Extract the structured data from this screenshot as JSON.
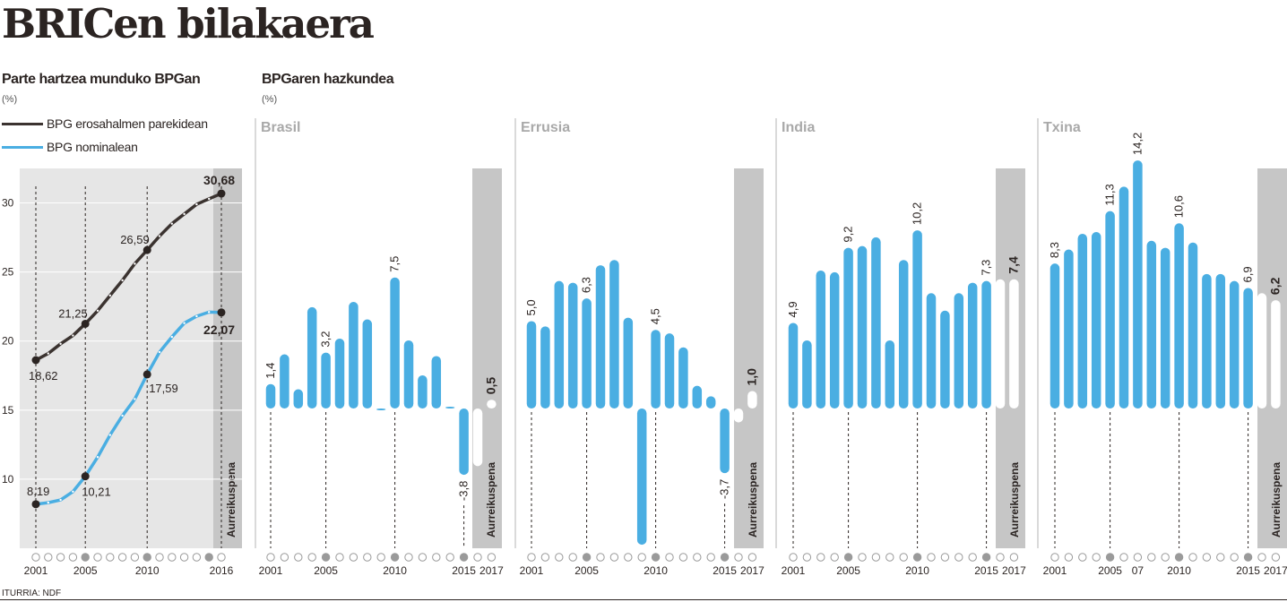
{
  "header": {
    "title": "BRICen bilakaera",
    "left_subtitle": "Parte hartzea munduko BPGan",
    "left_unit": "(%)",
    "right_subtitle": "BPGaren hazkundea",
    "right_unit": "(%)",
    "source": "ITURRIA: NDF"
  },
  "legend": {
    "ppp_label": "BPG erosahalmen parekidean",
    "nominal_label": "BPG nominalean"
  },
  "colors": {
    "dark": "#3b3330",
    "blue": "#4aaee2",
    "panel_bg": "#e6e6e6",
    "forecast_bg": "#c6c6c6",
    "white": "#ffffff"
  },
  "chart_data": [
    {
      "type": "line",
      "id": "share",
      "yticks": [
        10,
        15,
        20,
        25,
        30
      ],
      "ylim": [
        5,
        32.5
      ],
      "xlim": [
        2001,
        2016
      ],
      "x_tick_labels": [
        "2001",
        "2005",
        "2010",
        "2016"
      ],
      "forecast_label": "Aurreikuspena",
      "series": [
        {
          "name": "BPG erosahalmen parekidean",
          "x": [
            2001,
            2002,
            2003,
            2004,
            2005,
            2006,
            2007,
            2008,
            2009,
            2010,
            2011,
            2012,
            2013,
            2014,
            2015,
            2016
          ],
          "values": [
            18.62,
            19.1,
            19.8,
            20.4,
            21.25,
            22.2,
            23.3,
            24.4,
            25.6,
            26.59,
            27.6,
            28.5,
            29.2,
            29.9,
            30.3,
            30.68
          ]
        },
        {
          "name": "BPG nominalean",
          "x": [
            2001,
            2002,
            2003,
            2004,
            2005,
            2006,
            2007,
            2008,
            2009,
            2010,
            2011,
            2012,
            2013,
            2014,
            2015,
            2016
          ],
          "values": [
            8.19,
            8.3,
            8.5,
            9.1,
            10.21,
            11.6,
            13.2,
            14.6,
            15.8,
            17.59,
            19.2,
            20.3,
            21.3,
            21.8,
            22.1,
            22.07
          ]
        }
      ],
      "labels": [
        {
          "x": 2001,
          "series": 0,
          "text": "18,62"
        },
        {
          "x": 2005,
          "series": 0,
          "text": "21,25"
        },
        {
          "x": 2010,
          "series": 0,
          "text": "26,59"
        },
        {
          "x": 2016,
          "series": 0,
          "text": "30,68"
        },
        {
          "x": 2001,
          "series": 1,
          "text": "8,19"
        },
        {
          "x": 2005,
          "series": 1,
          "text": "10,21"
        },
        {
          "x": 2010,
          "series": 1,
          "text": "17,59"
        },
        {
          "x": 2016,
          "series": 1,
          "text": "22,07"
        }
      ]
    },
    {
      "type": "bar",
      "id": "brasil",
      "title": "Brasil",
      "x": [
        2001,
        2002,
        2003,
        2004,
        2005,
        2006,
        2007,
        2008,
        2009,
        2010,
        2011,
        2012,
        2013,
        2014,
        2015,
        2016,
        2017
      ],
      "values": [
        1.4,
        3.1,
        1.1,
        5.8,
        3.2,
        4.0,
        6.1,
        5.1,
        -0.1,
        7.5,
        3.9,
        1.9,
        3.0,
        0.1,
        -3.8,
        -3.3,
        0.5
      ],
      "forecast_from": 2016,
      "labels": [
        {
          "x": 2001,
          "text": "1,4"
        },
        {
          "x": 2005,
          "text": "3,2"
        },
        {
          "x": 2010,
          "text": "7,5"
        },
        {
          "x": 2015,
          "text": "-3,8"
        },
        {
          "x": 2017,
          "text": "0,5"
        }
      ],
      "x_tick_labels": [
        "2001",
        "2005",
        "2010",
        "2015",
        "2017"
      ],
      "forecast_label": "Aurreikuspena"
    },
    {
      "type": "bar",
      "id": "errusia",
      "title": "Errusia",
      "x": [
        2001,
        2002,
        2003,
        2004,
        2005,
        2006,
        2007,
        2008,
        2009,
        2010,
        2011,
        2012,
        2013,
        2014,
        2015,
        2016,
        2017
      ],
      "values": [
        5.0,
        4.7,
        7.3,
        7.2,
        6.3,
        8.2,
        8.5,
        5.2,
        -7.8,
        4.5,
        4.3,
        3.5,
        1.3,
        0.7,
        -3.7,
        -0.8,
        1.0
      ],
      "forecast_from": 2016,
      "labels": [
        {
          "x": 2001,
          "text": "5,0"
        },
        {
          "x": 2005,
          "text": "6,3"
        },
        {
          "x": 2010,
          "text": "4,5"
        },
        {
          "x": 2015,
          "text": "-3,7"
        },
        {
          "x": 2017,
          "text": "1,0"
        }
      ],
      "x_tick_labels": [
        "2001",
        "2005",
        "2010",
        "2015",
        "2017"
      ],
      "forecast_label": "Aurreikuspena"
    },
    {
      "type": "bar",
      "id": "india",
      "title": "India",
      "x": [
        2001,
        2002,
        2003,
        2004,
        2005,
        2006,
        2007,
        2008,
        2009,
        2010,
        2011,
        2012,
        2013,
        2014,
        2015,
        2016,
        2017
      ],
      "values": [
        4.9,
        3.9,
        7.9,
        7.8,
        9.2,
        9.3,
        9.8,
        3.9,
        8.5,
        10.2,
        6.6,
        5.6,
        6.6,
        7.2,
        7.3,
        7.4,
        7.4
      ],
      "forecast_from": 2016,
      "labels": [
        {
          "x": 2001,
          "text": "4,9"
        },
        {
          "x": 2005,
          "text": "9,2"
        },
        {
          "x": 2010,
          "text": "10,2"
        },
        {
          "x": 2015,
          "text": "7,3"
        },
        {
          "x": 2017,
          "text": "7,4"
        }
      ],
      "x_tick_labels": [
        "2001",
        "2005",
        "2010",
        "2015",
        "2017"
      ],
      "forecast_label": "Aurreikuspena"
    },
    {
      "type": "bar",
      "id": "txina",
      "title": "Txina",
      "x": [
        2001,
        2002,
        2003,
        2004,
        2005,
        2006,
        2007,
        2008,
        2009,
        2010,
        2011,
        2012,
        2013,
        2014,
        2015,
        2016,
        2017
      ],
      "values": [
        8.3,
        9.1,
        10.0,
        10.1,
        11.3,
        12.7,
        14.2,
        9.6,
        9.2,
        10.6,
        9.5,
        7.7,
        7.7,
        7.3,
        6.9,
        6.6,
        6.2
      ],
      "forecast_from": 2016,
      "labels": [
        {
          "x": 2001,
          "text": "8,3"
        },
        {
          "x": 2005,
          "text": "11,3"
        },
        {
          "x": 2007,
          "text": "14,2"
        },
        {
          "x": 2010,
          "text": "10,6"
        },
        {
          "x": 2015,
          "text": "6,9"
        },
        {
          "x": 2017,
          "text": "6,2"
        }
      ],
      "x_tick_labels": [
        "2001",
        "2005",
        "07",
        "2010",
        "2015",
        "2017"
      ],
      "forecast_label": "Aurreikuspena"
    }
  ]
}
